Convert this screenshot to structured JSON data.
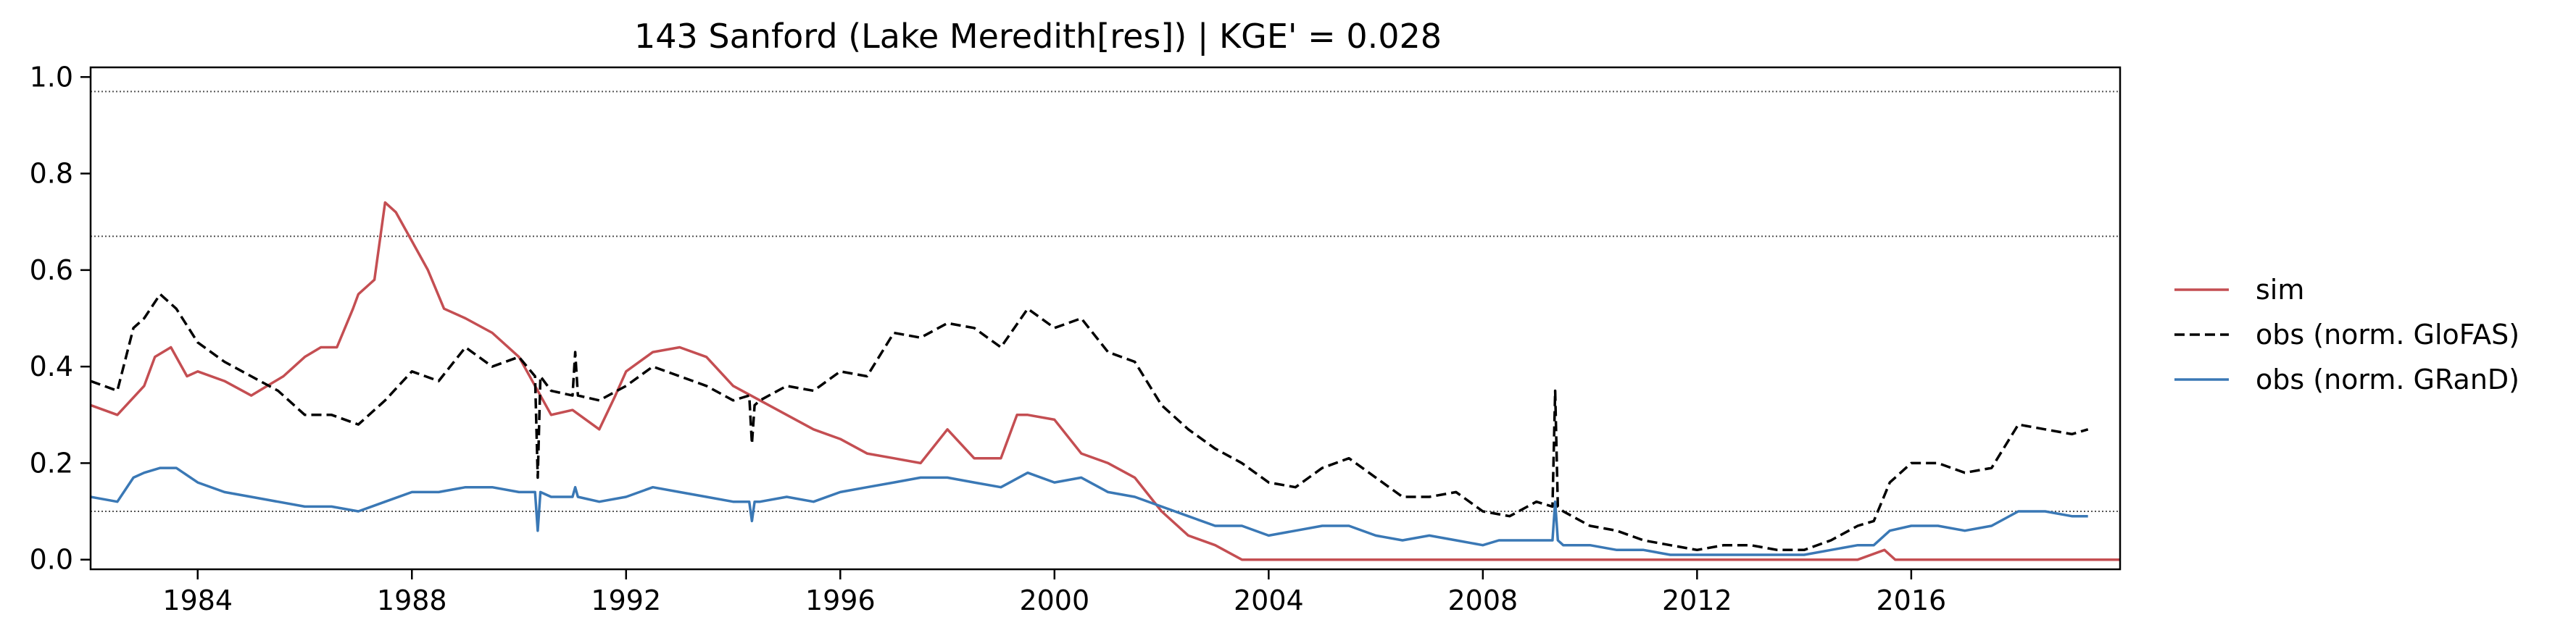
{
  "chart_data": {
    "type": "line",
    "title": "143  Sanford (Lake Meredith[res]) | KGE' = 0.028",
    "xlabel": "",
    "ylabel": "",
    "xlim": [
      1982.0,
      2019.9
    ],
    "ylim": [
      -0.02,
      1.02
    ],
    "xticks": [
      1984,
      1988,
      1992,
      1996,
      2000,
      2004,
      2008,
      2012,
      2016
    ],
    "yticks": [
      0.0,
      0.2,
      0.4,
      0.6,
      0.8,
      1.0
    ],
    "ytick_labels": [
      "0.0",
      "0.2",
      "0.4",
      "0.6",
      "0.8",
      "1.0"
    ],
    "hlines": [
      0.97,
      0.67,
      0.1
    ],
    "hline_style": "dotted",
    "grid": false,
    "legend_position": "right-outside",
    "series": [
      {
        "name": "sim",
        "color": "#c44e52",
        "dash": "solid",
        "x": [
          1982.0,
          1982.5,
          1983.0,
          1983.2,
          1983.5,
          1983.8,
          1984.0,
          1984.5,
          1985.0,
          1985.3,
          1985.6,
          1986.0,
          1986.3,
          1986.6,
          1986.9,
          1987.0,
          1987.3,
          1987.5,
          1987.7,
          1988.0,
          1988.3,
          1988.6,
          1989.0,
          1989.5,
          1990.0,
          1990.3,
          1990.6,
          1991.0,
          1991.5,
          1991.8,
          1992.0,
          1992.5,
          1993.0,
          1993.5,
          1994.0,
          1994.5,
          1995.0,
          1995.5,
          1996.0,
          1996.5,
          1997.0,
          1997.5,
          1998.0,
          1998.5,
          1999.0,
          1999.3,
          1999.5,
          2000.0,
          2000.5,
          2001.0,
          2001.5,
          2002.0,
          2002.5,
          2003.0,
          2003.5,
          2004.0,
          2005.0,
          2006.0,
          2007.0,
          2008.0,
          2009.0,
          2010.0,
          2011.0,
          2012.0,
          2013.0,
          2014.0,
          2015.0,
          2015.5,
          2015.7,
          2016.0,
          2017.0,
          2018.0,
          2019.0,
          2019.9
        ],
        "y": [
          0.32,
          0.3,
          0.36,
          0.42,
          0.44,
          0.38,
          0.39,
          0.37,
          0.34,
          0.36,
          0.38,
          0.42,
          0.44,
          0.44,
          0.52,
          0.55,
          0.58,
          0.74,
          0.72,
          0.66,
          0.6,
          0.52,
          0.5,
          0.47,
          0.42,
          0.36,
          0.3,
          0.31,
          0.27,
          0.34,
          0.39,
          0.43,
          0.44,
          0.42,
          0.36,
          0.33,
          0.3,
          0.27,
          0.25,
          0.22,
          0.21,
          0.2,
          0.27,
          0.21,
          0.21,
          0.3,
          0.3,
          0.29,
          0.22,
          0.2,
          0.17,
          0.1,
          0.05,
          0.03,
          0.0,
          0.0,
          0.0,
          0.0,
          0.0,
          0.0,
          0.0,
          0.0,
          0.0,
          0.0,
          0.0,
          0.0,
          0.0,
          0.02,
          0.0,
          0.0,
          0.0,
          0.0,
          0.0,
          0.0
        ]
      },
      {
        "name": "obs (norm. GloFAS)",
        "color": "#000000",
        "dash": "dashed",
        "x": [
          1982.0,
          1982.5,
          1982.8,
          1983.0,
          1983.3,
          1983.6,
          1984.0,
          1984.5,
          1985.0,
          1985.5,
          1986.0,
          1986.5,
          1987.0,
          1987.5,
          1988.0,
          1988.5,
          1989.0,
          1989.5,
          1990.0,
          1990.3,
          1990.35,
          1990.4,
          1990.6,
          1991.0,
          1991.05,
          1991.1,
          1991.5,
          1992.0,
          1992.5,
          1993.0,
          1993.5,
          1994.0,
          1994.3,
          1994.35,
          1994.4,
          1994.5,
          1995.0,
          1995.5,
          1996.0,
          1996.5,
          1997.0,
          1997.5,
          1998.0,
          1998.5,
          1999.0,
          1999.5,
          2000.0,
          2000.5,
          2001.0,
          2001.5,
          2002.0,
          2002.5,
          2003.0,
          2003.5,
          2004.0,
          2004.5,
          2005.0,
          2005.5,
          2006.0,
          2006.5,
          2007.0,
          2007.5,
          2008.0,
          2008.5,
          2009.0,
          2009.3,
          2009.35,
          2009.4,
          2009.5,
          2010.0,
          2010.5,
          2011.0,
          2011.5,
          2012.0,
          2012.5,
          2013.0,
          2013.5,
          2014.0,
          2014.5,
          2015.0,
          2015.3,
          2015.6,
          2016.0,
          2016.5,
          2017.0,
          2017.5,
          2018.0,
          2018.5,
          2019.0,
          2019.3
        ],
        "y": [
          0.37,
          0.35,
          0.48,
          0.5,
          0.55,
          0.52,
          0.45,
          0.41,
          0.38,
          0.35,
          0.3,
          0.3,
          0.28,
          0.33,
          0.39,
          0.37,
          0.44,
          0.4,
          0.42,
          0.38,
          0.17,
          0.38,
          0.35,
          0.34,
          0.43,
          0.34,
          0.33,
          0.36,
          0.4,
          0.38,
          0.36,
          0.33,
          0.34,
          0.24,
          0.32,
          0.33,
          0.36,
          0.35,
          0.39,
          0.38,
          0.47,
          0.46,
          0.49,
          0.48,
          0.44,
          0.52,
          0.48,
          0.5,
          0.43,
          0.41,
          0.32,
          0.27,
          0.23,
          0.2,
          0.16,
          0.15,
          0.19,
          0.21,
          0.17,
          0.13,
          0.13,
          0.14,
          0.1,
          0.09,
          0.12,
          0.11,
          0.35,
          0.11,
          0.1,
          0.07,
          0.06,
          0.04,
          0.03,
          0.02,
          0.03,
          0.03,
          0.02,
          0.02,
          0.04,
          0.07,
          0.08,
          0.16,
          0.2,
          0.2,
          0.18,
          0.19,
          0.28,
          0.27,
          0.26,
          0.27
        ]
      },
      {
        "name": "obs (norm. GRanD)",
        "color": "#3a78b5",
        "dash": "solid",
        "x": [
          1982.0,
          1982.5,
          1982.8,
          1983.0,
          1983.3,
          1983.6,
          1984.0,
          1984.5,
          1985.0,
          1985.5,
          1986.0,
          1986.5,
          1987.0,
          1987.5,
          1988.0,
          1988.5,
          1989.0,
          1989.5,
          1990.0,
          1990.3,
          1990.35,
          1990.4,
          1990.6,
          1991.0,
          1991.05,
          1991.1,
          1991.5,
          1992.0,
          1992.5,
          1993.0,
          1993.5,
          1994.0,
          1994.3,
          1994.35,
          1994.4,
          1994.5,
          1995.0,
          1995.5,
          1996.0,
          1996.5,
          1997.0,
          1997.5,
          1998.0,
          1998.5,
          1999.0,
          1999.5,
          2000.0,
          2000.5,
          2001.0,
          2001.5,
          2002.0,
          2002.5,
          2003.0,
          2003.5,
          2004.0,
          2004.5,
          2005.0,
          2005.5,
          2006.0,
          2006.5,
          2007.0,
          2007.5,
          2008.0,
          2008.3,
          2008.5,
          2009.0,
          2009.3,
          2009.35,
          2009.4,
          2009.5,
          2010.0,
          2010.5,
          2011.0,
          2011.5,
          2012.0,
          2012.5,
          2013.0,
          2013.5,
          2014.0,
          2014.5,
          2015.0,
          2015.3,
          2015.6,
          2016.0,
          2016.5,
          2017.0,
          2017.5,
          2018.0,
          2018.5,
          2019.0,
          2019.3
        ],
        "y": [
          0.13,
          0.12,
          0.17,
          0.18,
          0.19,
          0.19,
          0.16,
          0.14,
          0.13,
          0.12,
          0.11,
          0.11,
          0.1,
          0.12,
          0.14,
          0.14,
          0.15,
          0.15,
          0.14,
          0.14,
          0.06,
          0.14,
          0.13,
          0.13,
          0.15,
          0.13,
          0.12,
          0.13,
          0.15,
          0.14,
          0.13,
          0.12,
          0.12,
          0.08,
          0.12,
          0.12,
          0.13,
          0.12,
          0.14,
          0.15,
          0.16,
          0.17,
          0.17,
          0.16,
          0.15,
          0.18,
          0.16,
          0.17,
          0.14,
          0.13,
          0.11,
          0.09,
          0.07,
          0.07,
          0.05,
          0.06,
          0.07,
          0.07,
          0.05,
          0.04,
          0.05,
          0.04,
          0.03,
          0.04,
          0.04,
          0.04,
          0.04,
          0.12,
          0.04,
          0.03,
          0.03,
          0.02,
          0.02,
          0.01,
          0.01,
          0.01,
          0.01,
          0.01,
          0.01,
          0.02,
          0.03,
          0.03,
          0.06,
          0.07,
          0.07,
          0.06,
          0.07,
          0.1,
          0.1,
          0.09,
          0.09
        ]
      }
    ]
  }
}
